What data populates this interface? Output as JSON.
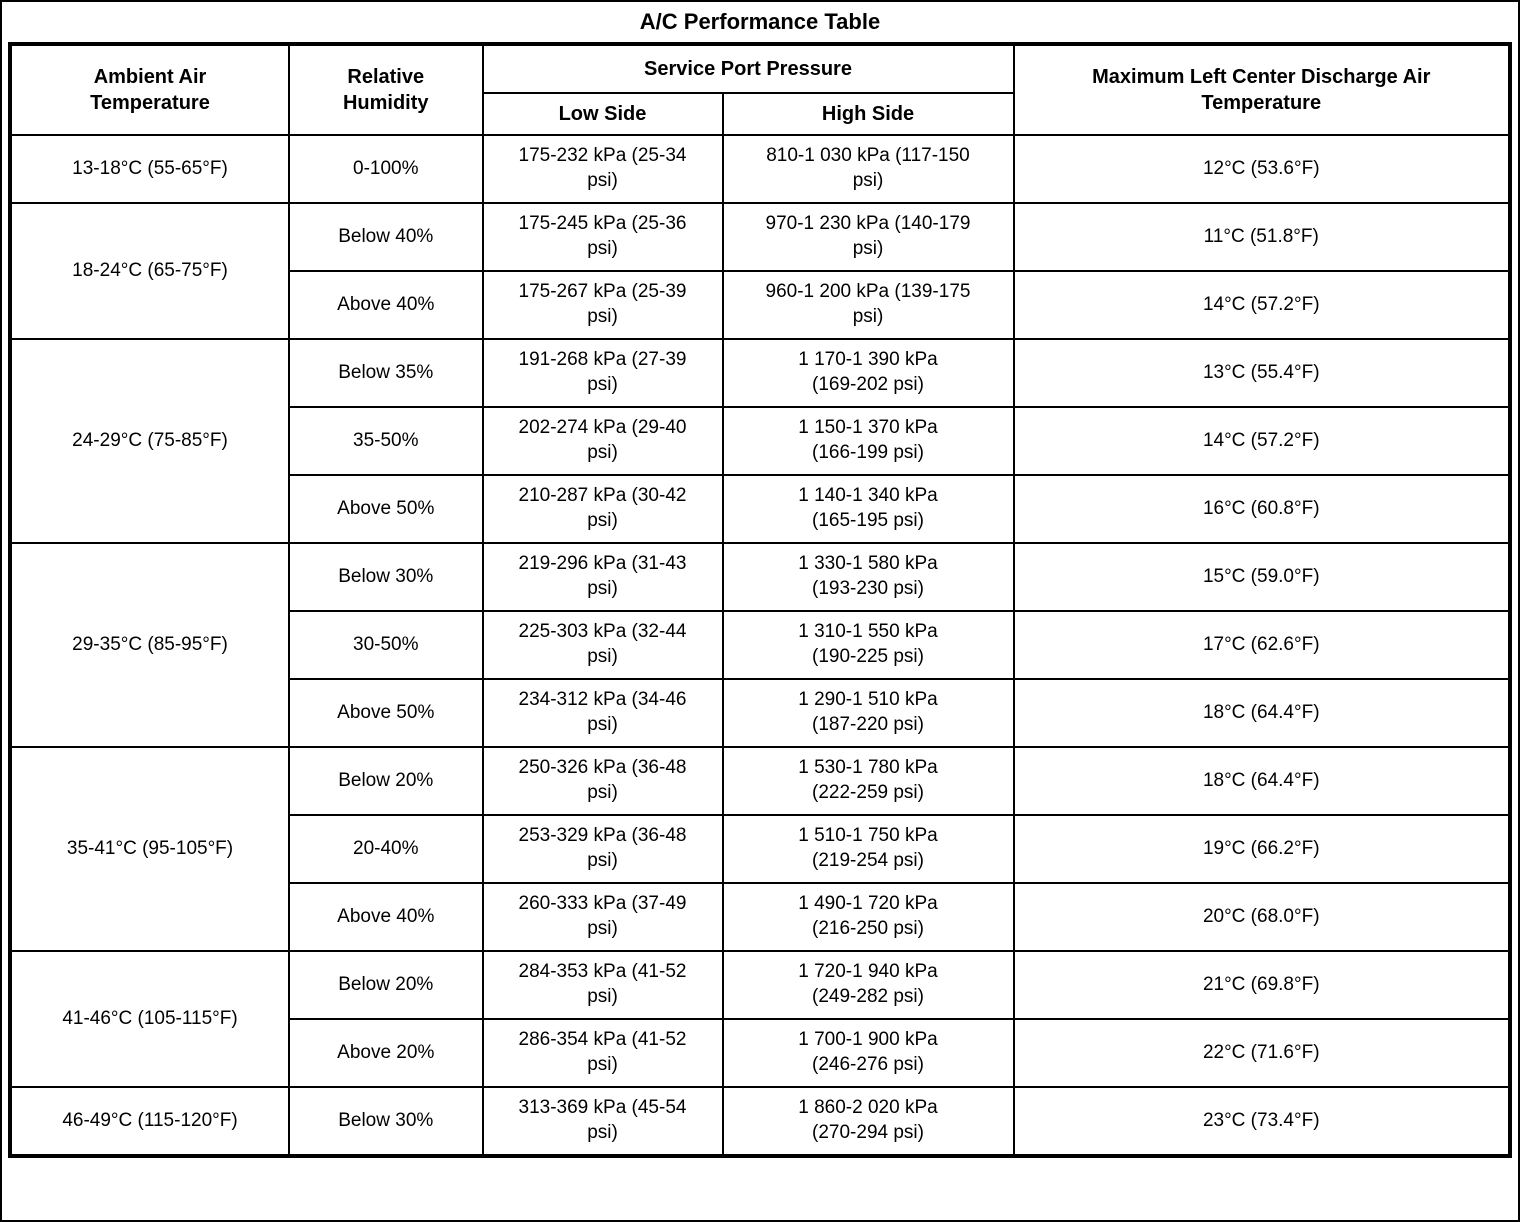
{
  "title": "A/C Performance Table",
  "table": {
    "headers": {
      "ambient": "Ambient Air\nTemperature",
      "humidity": "Relative\nHumidity",
      "pressure_group": "Service Port Pressure",
      "low_side": "Low Side",
      "high_side": "High Side",
      "discharge": "Maximum Left Center Discharge Air\nTemperature"
    },
    "groups": [
      {
        "ambient": "13-18°C (55-65°F)",
        "rows": [
          {
            "humidity": "0-100%",
            "low": "175-232 kPa (25-34\npsi)",
            "high": "810-1 030 kPa (117-150\npsi)",
            "discharge": "12°C (53.6°F)"
          }
        ]
      },
      {
        "ambient": "18-24°C (65-75°F)",
        "rows": [
          {
            "humidity": "Below 40%",
            "low": "175-245 kPa (25-36\npsi)",
            "high": "970-1 230 kPa (140-179\npsi)",
            "discharge": "11°C (51.8°F)"
          },
          {
            "humidity": "Above 40%",
            "low": "175-267 kPa (25-39\npsi)",
            "high": "960-1 200 kPa (139-175\npsi)",
            "discharge": "14°C (57.2°F)"
          }
        ]
      },
      {
        "ambient": "24-29°C (75-85°F)",
        "rows": [
          {
            "humidity": "Below 35%",
            "low": "191-268 kPa (27-39\npsi)",
            "high": "1 170-1 390 kPa\n(169-202 psi)",
            "discharge": "13°C (55.4°F)"
          },
          {
            "humidity": "35-50%",
            "low": "202-274 kPa (29-40\npsi)",
            "high": "1 150-1 370 kPa\n(166-199 psi)",
            "discharge": "14°C (57.2°F)"
          },
          {
            "humidity": "Above 50%",
            "low": "210-287 kPa (30-42\npsi)",
            "high": "1 140-1 340 kPa\n(165-195 psi)",
            "discharge": "16°C (60.8°F)"
          }
        ]
      },
      {
        "ambient": "29-35°C (85-95°F)",
        "rows": [
          {
            "humidity": "Below 30%",
            "low": "219-296 kPa (31-43\npsi)",
            "high": "1 330-1 580 kPa\n(193-230 psi)",
            "discharge": "15°C (59.0°F)"
          },
          {
            "humidity": "30-50%",
            "low": "225-303 kPa (32-44\npsi)",
            "high": "1 310-1 550 kPa\n(190-225 psi)",
            "discharge": "17°C (62.6°F)"
          },
          {
            "humidity": "Above 50%",
            "low": "234-312 kPa (34-46\npsi)",
            "high": "1 290-1 510 kPa\n(187-220 psi)",
            "discharge": "18°C (64.4°F)"
          }
        ]
      },
      {
        "ambient": "35-41°C (95-105°F)",
        "rows": [
          {
            "humidity": "Below 20%",
            "low": "250-326 kPa (36-48\npsi)",
            "high": "1 530-1 780 kPa\n(222-259 psi)",
            "discharge": "18°C (64.4°F)"
          },
          {
            "humidity": "20-40%",
            "low": "253-329 kPa (36-48\npsi)",
            "high": "1 510-1 750 kPa\n(219-254 psi)",
            "discharge": "19°C (66.2°F)"
          },
          {
            "humidity": "Above 40%",
            "low": "260-333 kPa (37-49\npsi)",
            "high": "1 490-1 720 kPa\n(216-250 psi)",
            "discharge": "20°C (68.0°F)"
          }
        ]
      },
      {
        "ambient": "41-46°C (105-115°F)",
        "rows": [
          {
            "humidity": "Below 20%",
            "low": "284-353 kPa (41-52\npsi)",
            "high": "1 720-1 940 kPa\n(249-282 psi)",
            "discharge": "21°C (69.8°F)"
          },
          {
            "humidity": "Above 20%",
            "low": "286-354 kPa (41-52\npsi)",
            "high": "1 700-1 900 kPa\n(246-276 psi)",
            "discharge": "22°C (71.6°F)"
          }
        ]
      },
      {
        "ambient": "46-49°C (115-120°F)",
        "rows": [
          {
            "humidity": "Below 30%",
            "low": "313-369 kPa (45-54\npsi)",
            "high": "1 860-2 020 kPa\n(270-294 psi)",
            "discharge": "23°C (73.4°F)"
          }
        ]
      }
    ]
  }
}
